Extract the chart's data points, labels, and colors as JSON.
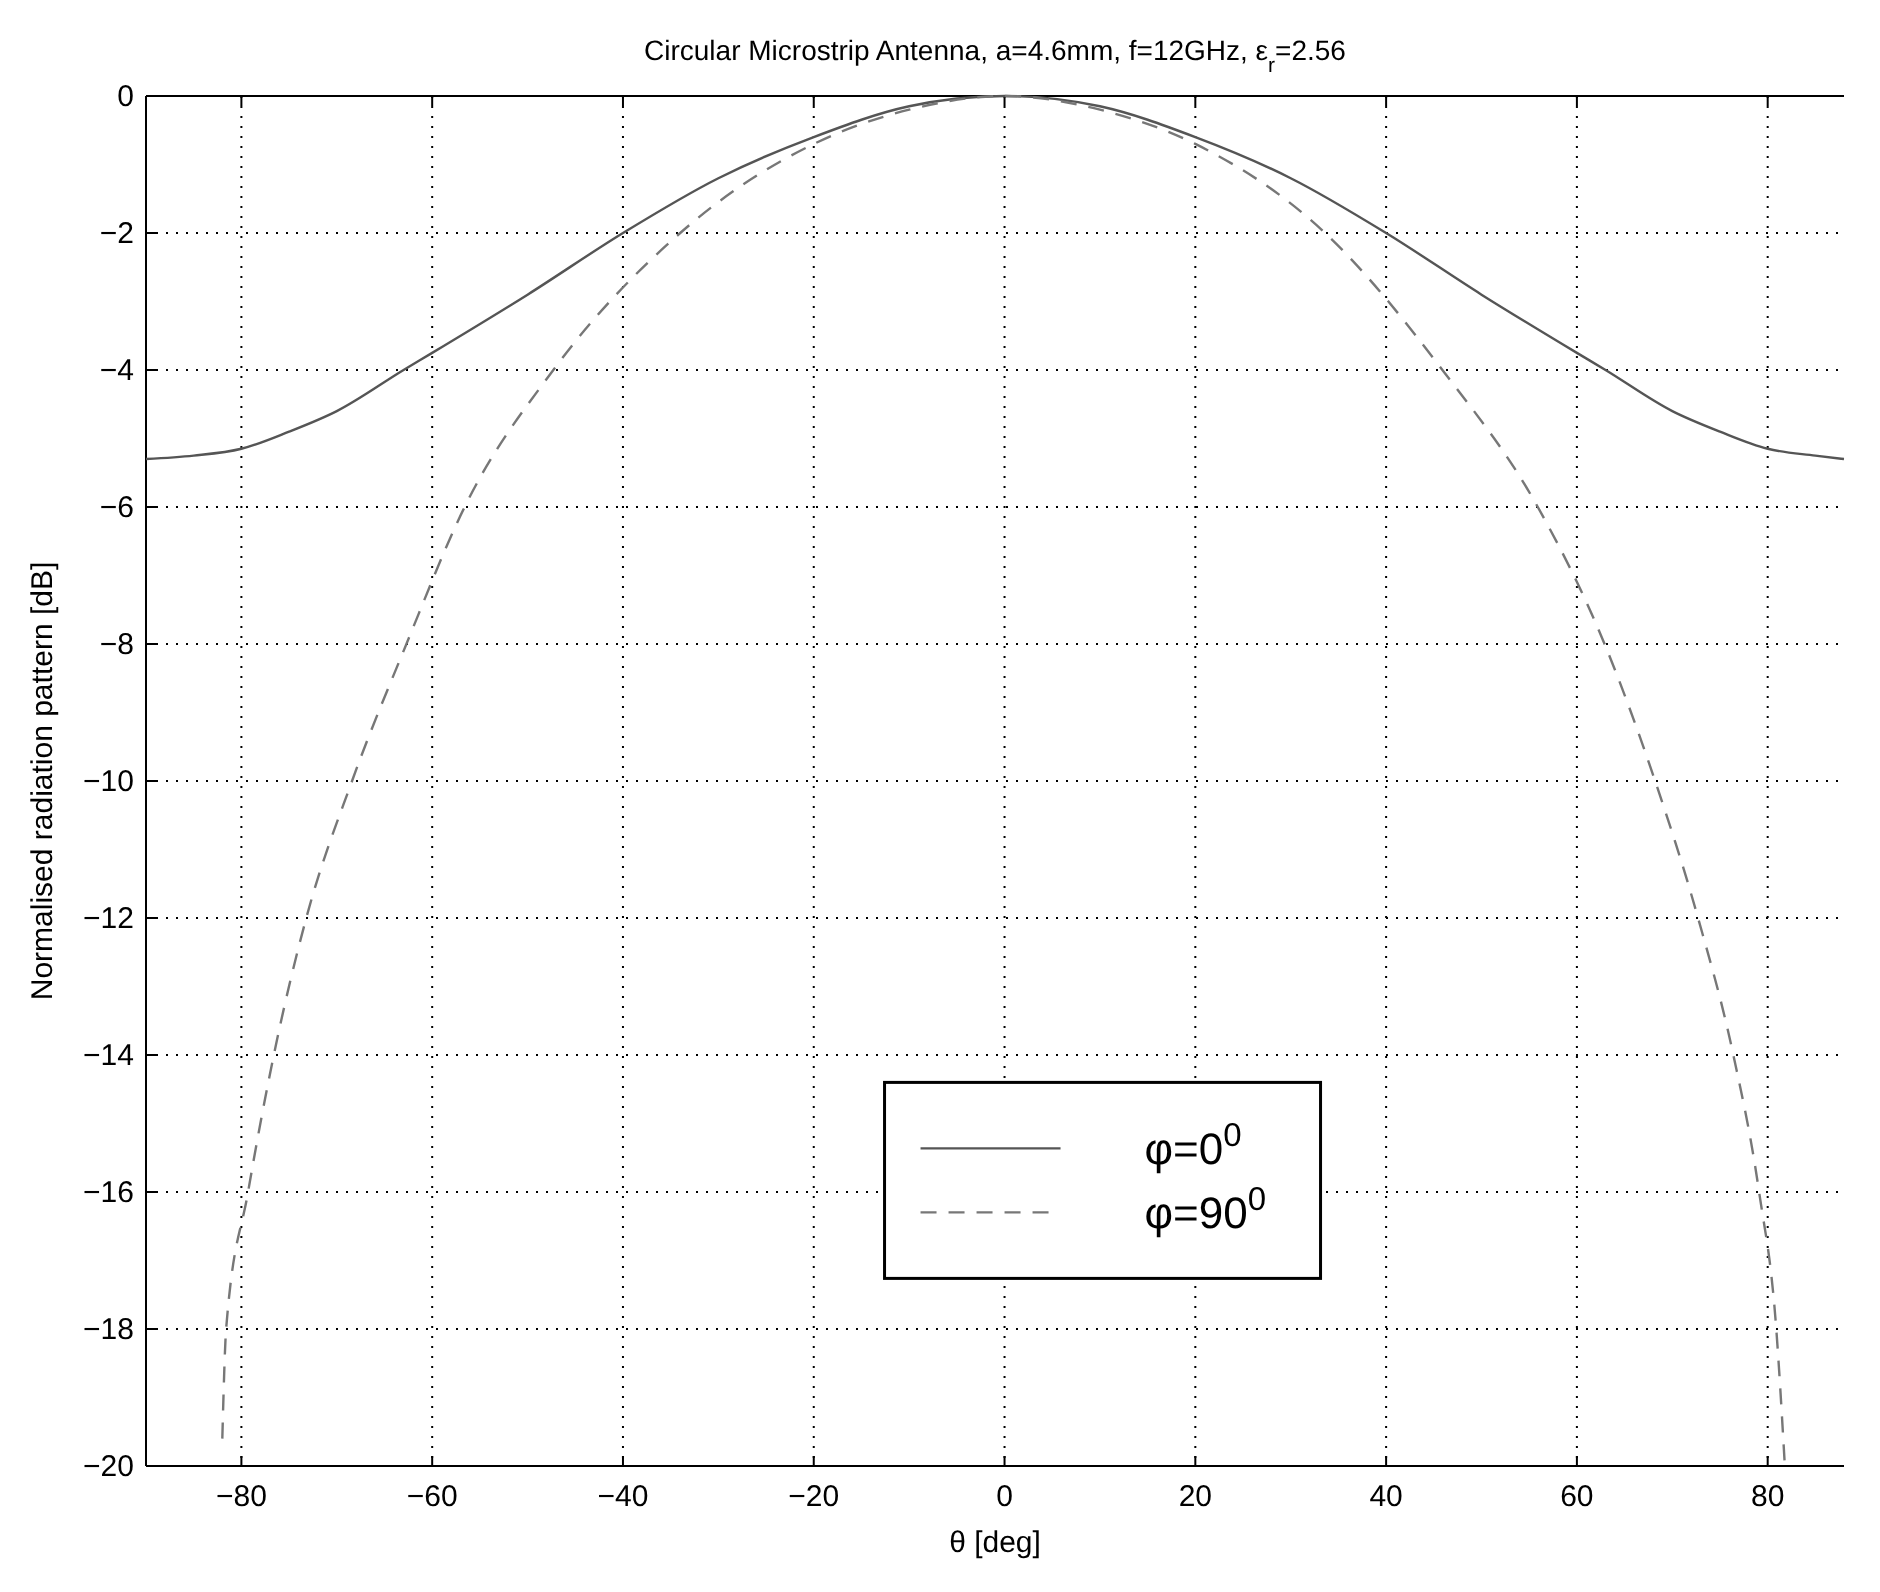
{
  "chart_data": {
    "type": "line",
    "title": "Circular Microstrip Antenna, a=4.6mm, f=12GHz, ε$_{r}$=2.56",
    "xlabel": "θ [deg]",
    "ylabel": "Normalised radiation pattern [dB]",
    "xlim": [
      -90,
      88
    ],
    "ylim": [
      -20,
      0
    ],
    "xticks": [
      -80,
      -60,
      -40,
      -20,
      0,
      20,
      40,
      60,
      80
    ],
    "yticks": [
      -20,
      -18,
      -16,
      -14,
      -12,
      -10,
      -8,
      -6,
      -4,
      -2,
      0
    ],
    "grid": true,
    "legend": "bottom",
    "series": [
      {
        "name": "φ=0$^{0}$",
        "color": "#555555",
        "line_style": "solid",
        "x": [
          -90,
          -85,
          -80,
          -75,
          -70,
          -63,
          -60,
          -50,
          -40,
          -30,
          -20,
          -10,
          0,
          10,
          20,
          30,
          40,
          50,
          60,
          63,
          70,
          75,
          80,
          85,
          88
        ],
        "values": [
          -5.3,
          -5.25,
          -5.15,
          -4.9,
          -4.6,
          -4.0,
          -3.75,
          -2.9,
          -2.0,
          -1.2,
          -0.6,
          -0.15,
          0,
          -0.15,
          -0.6,
          -1.2,
          -2.0,
          -2.9,
          -3.75,
          -4.0,
          -4.6,
          -4.9,
          -5.15,
          -5.25,
          -5.3
        ]
      },
      {
        "name": "φ=90$^{0}$",
        "color": "#777777",
        "line_style": "dashed",
        "x": [
          -82,
          -81.6,
          -79.3,
          -76.6,
          -73.2,
          -68.4,
          -62.7,
          -56.6,
          -47.3,
          -34,
          -20,
          -10,
          0,
          10,
          20,
          33.6,
          45.9,
          55.9,
          62.9,
          68.2,
          72.7,
          76.4,
          79.1,
          80.9,
          81.8
        ],
        "values": [
          -19.6,
          -18,
          -16,
          -14,
          -12,
          -10,
          -8,
          -6,
          -4,
          -2,
          -0.7,
          -0.2,
          0,
          -0.2,
          -0.7,
          -2,
          -4,
          -6,
          -8,
          -10,
          -12,
          -14,
          -16,
          -18,
          -20
        ]
      }
    ]
  }
}
